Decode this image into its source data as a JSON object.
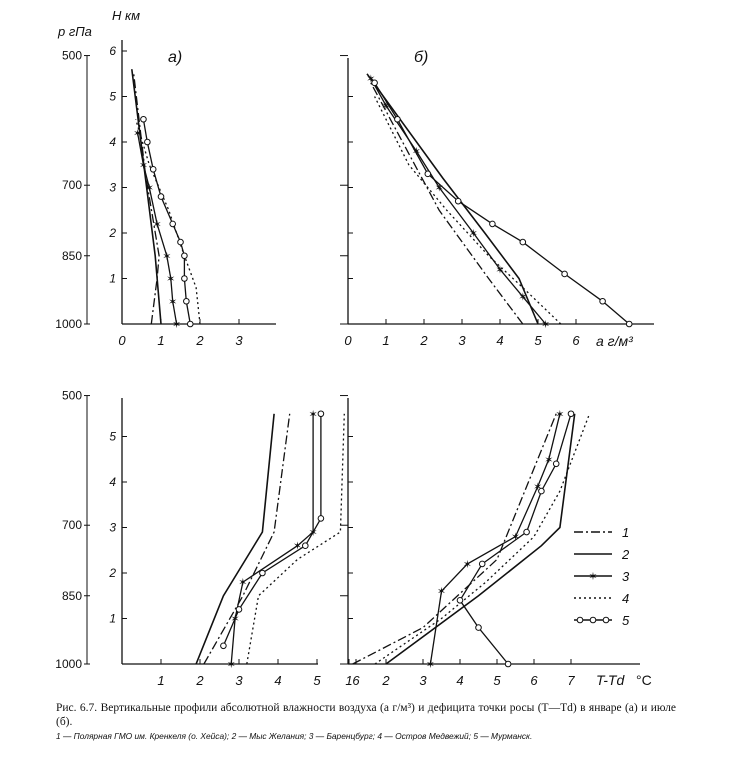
{
  "figure": {
    "y_axis_title_pressure": "p гПа",
    "y_axis_title_height": "H км",
    "units_label": "а г/м³",
    "deficit_label": "T-Td",
    "deficit_unit": "°C",
    "caption_main": "Рис. 6.7. Вертикальные профили абсолютной влажности воздуха (а г/м³) и дефицита точки росы (T—Td) в январе (а) и июле (б).",
    "caption_legend": "1 — Полярная ГМО им. Кренкеля (о. Хейса); 2 — Мыс Желания; 3 — Баренцбург; 4 — Остров Медвежий; 5 — Мурманск.",
    "legend": [
      {
        "label": "1",
        "style": "dashdot"
      },
      {
        "label": "2",
        "style": "solid"
      },
      {
        "label": "3",
        "style": "star"
      },
      {
        "label": "4",
        "style": "dotted"
      },
      {
        "label": "5",
        "style": "circle"
      }
    ]
  },
  "chart_data": [
    {
      "type": "line",
      "panel": "а)",
      "title": "а)",
      "xlabel": "",
      "ylabel": "H км",
      "xlim": [
        0,
        4
      ],
      "xticks": [
        0,
        1,
        2,
        3
      ],
      "hticks": [
        1,
        2,
        3,
        4,
        5,
        6
      ],
      "pticks": [
        "500",
        "700",
        "850",
        "1000"
      ],
      "series": [
        {
          "name": "1",
          "style": "dashdot",
          "points": [
            [
              0.75,
              0
            ],
            [
              0.9,
              1.0
            ],
            [
              0.95,
              1.5
            ],
            [
              0.6,
              3.3
            ],
            [
              0.3,
              5.5
            ]
          ]
        },
        {
          "name": "2",
          "style": "solid",
          "points": [
            [
              1.0,
              0
            ],
            [
              0.85,
              1.5
            ],
            [
              0.25,
              5.6
            ]
          ]
        },
        {
          "name": "3",
          "style": "star",
          "points": [
            [
              1.4,
              0
            ],
            [
              1.3,
              0.5
            ],
            [
              1.25,
              1.0
            ],
            [
              1.15,
              1.5
            ],
            [
              0.9,
              2.2
            ],
            [
              0.7,
              3.0
            ],
            [
              0.55,
              3.5
            ],
            [
              0.4,
              4.2
            ]
          ]
        },
        {
          "name": "4",
          "style": "dotted",
          "points": [
            [
              2.0,
              0
            ],
            [
              1.9,
              0.8
            ],
            [
              1.6,
              1.5
            ],
            [
              1.2,
              2.5
            ],
            [
              0.7,
              3.5
            ],
            [
              0.35,
              4.5
            ]
          ]
        },
        {
          "name": "5",
          "style": "circle",
          "points": [
            [
              1.75,
              0
            ],
            [
              1.65,
              0.5
            ],
            [
              1.6,
              1.0
            ],
            [
              1.6,
              1.5
            ],
            [
              1.5,
              1.8
            ],
            [
              1.3,
              2.2
            ],
            [
              1.0,
              2.8
            ],
            [
              0.8,
              3.4
            ],
            [
              0.65,
              4.0
            ],
            [
              0.55,
              4.5
            ]
          ]
        }
      ]
    },
    {
      "type": "line",
      "panel": "б)",
      "title": "б)",
      "xlabel": "а г/м³",
      "ylabel": "H км",
      "xlim": [
        0,
        7.5
      ],
      "xticks": [
        0,
        1,
        2,
        3,
        4,
        5,
        6
      ],
      "series": [
        {
          "name": "1",
          "style": "dashdot",
          "points": [
            [
              4.6,
              0
            ],
            [
              3.7,
              1.0
            ],
            [
              2.4,
              2.5
            ],
            [
              0.6,
              5.3
            ]
          ]
        },
        {
          "name": "2",
          "style": "solid",
          "points": [
            [
              5.0,
              0
            ],
            [
              4.5,
              1.0
            ],
            [
              3.6,
              2.0
            ],
            [
              2.5,
              3.2
            ],
            [
              0.5,
              5.5
            ]
          ]
        },
        {
          "name": "3",
          "style": "star",
          "points": [
            [
              5.2,
              0
            ],
            [
              4.6,
              0.6
            ],
            [
              4.0,
              1.2
            ],
            [
              3.3,
              2.0
            ],
            [
              2.4,
              3.0
            ],
            [
              1.8,
              3.8
            ],
            [
              1.0,
              4.8
            ],
            [
              0.6,
              5.4
            ]
          ]
        },
        {
          "name": "4",
          "style": "dotted",
          "points": [
            [
              5.6,
              0
            ],
            [
              4.6,
              0.8
            ],
            [
              3.7,
              1.5
            ],
            [
              2.6,
              2.5
            ],
            [
              1.6,
              3.5
            ],
            [
              0.7,
              5.0
            ]
          ]
        },
        {
          "name": "5",
          "style": "circle",
          "points": [
            [
              7.4,
              0
            ],
            [
              6.7,
              0.5
            ],
            [
              5.7,
              1.1
            ],
            [
              4.6,
              1.8
            ],
            [
              3.8,
              2.2
            ],
            [
              2.9,
              2.7
            ],
            [
              2.1,
              3.3
            ],
            [
              1.3,
              4.5
            ],
            [
              0.7,
              5.3
            ]
          ]
        }
      ]
    },
    {
      "type": "line",
      "panel": "а)",
      "title": "",
      "xlabel": "",
      "ylabel": "",
      "xlim": [
        1,
        6.6
      ],
      "xticks": [
        1,
        2,
        3,
        4,
        5,
        6
      ],
      "series": [
        {
          "name": "1",
          "style": "dashdot",
          "points": [
            [
              2.1,
              0
            ],
            [
              3.1,
              1.5
            ],
            [
              3.9,
              2.9
            ],
            [
              4.3,
              5.5
            ]
          ]
        },
        {
          "name": "2",
          "style": "solid",
          "points": [
            [
              1.9,
              0
            ],
            [
              2.6,
              1.5
            ],
            [
              3.6,
              2.9
            ],
            [
              3.9,
              5.5
            ]
          ]
        },
        {
          "name": "3",
          "style": "star",
          "points": [
            [
              2.8,
              0
            ],
            [
              2.9,
              1.0
            ],
            [
              3.1,
              1.8
            ],
            [
              4.5,
              2.6
            ],
            [
              4.9,
              2.9
            ],
            [
              4.9,
              5.5
            ]
          ]
        },
        {
          "name": "4",
          "style": "dotted",
          "points": [
            [
              3.2,
              0
            ],
            [
              3.5,
              1.5
            ],
            [
              4.5,
              2.3
            ],
            [
              5.6,
              2.9
            ],
            [
              5.7,
              5.5
            ]
          ]
        },
        {
          "name": "5",
          "style": "circle",
          "points": [
            [
              2.6,
              0.4
            ],
            [
              3.0,
              1.2
            ],
            [
              3.6,
              2.0
            ],
            [
              4.7,
              2.6
            ],
            [
              5.1,
              3.2
            ],
            [
              5.1,
              5.5
            ]
          ]
        }
      ]
    },
    {
      "type": "line",
      "panel": "б)",
      "title": "",
      "xlabel": "T-Td",
      "ylabel": "",
      "xlim": [
        1,
        8.2
      ],
      "xticks": [
        1,
        2,
        3,
        4,
        5,
        6,
        7
      ],
      "series": [
        {
          "name": "1",
          "style": "dashdot",
          "points": [
            [
              1.1,
              0
            ],
            [
              3.0,
              0.8
            ],
            [
              5.0,
              2.3
            ],
            [
              6.6,
              5.5
            ]
          ]
        },
        {
          "name": "2",
          "style": "solid",
          "points": [
            [
              2.0,
              0
            ],
            [
              4.5,
              1.5
            ],
            [
              6.2,
              2.6
            ],
            [
              6.7,
              3.0
            ],
            [
              7.1,
              5.5
            ]
          ]
        },
        {
          "name": "3",
          "style": "star",
          "points": [
            [
              3.2,
              0
            ],
            [
              3.5,
              1.6
            ],
            [
              4.2,
              2.2
            ],
            [
              5.5,
              2.8
            ],
            [
              6.1,
              3.9
            ],
            [
              6.4,
              4.5
            ],
            [
              6.7,
              5.5
            ]
          ]
        },
        {
          "name": "4",
          "style": "dotted",
          "points": [
            [
              1.7,
              0
            ],
            [
              3.5,
              1.0
            ],
            [
              4.7,
              1.8
            ],
            [
              6.0,
              2.8
            ],
            [
              6.7,
              3.8
            ],
            [
              7.5,
              5.5
            ]
          ]
        },
        {
          "name": "5",
          "style": "circle",
          "points": [
            [
              5.3,
              0
            ],
            [
              4.5,
              0.8
            ],
            [
              4.0,
              1.4
            ],
            [
              4.6,
              2.2
            ],
            [
              5.8,
              2.9
            ],
            [
              6.2,
              3.8
            ],
            [
              6.6,
              4.4
            ],
            [
              7.0,
              5.5
            ]
          ]
        }
      ]
    }
  ]
}
